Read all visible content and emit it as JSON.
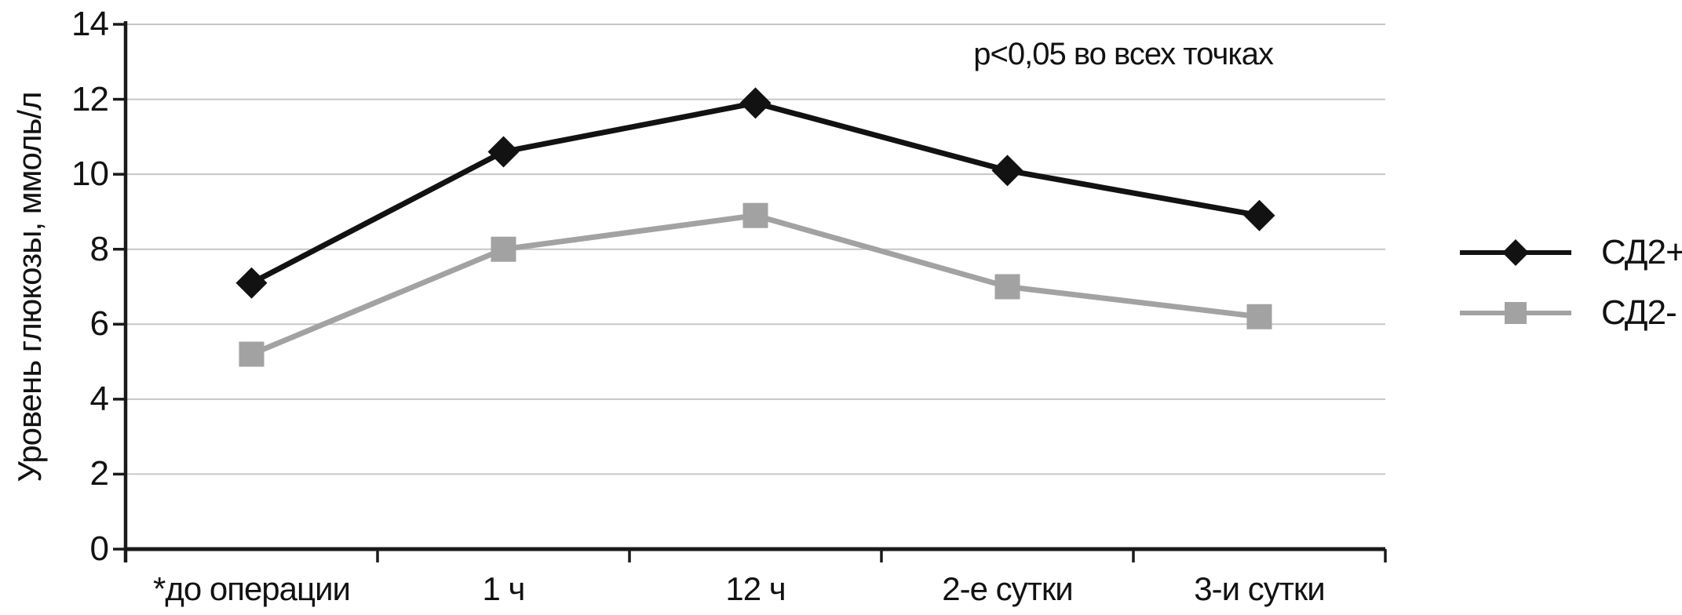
{
  "chart_data": {
    "type": "line",
    "title": "",
    "xlabel": "",
    "ylabel": "Уровень глюкозы, ммоль/л",
    "annotation": "р<0,05 во всех точках",
    "categories": [
      "*до операции",
      "1 ч",
      "12 ч",
      "2-е сутки",
      "3-и сутки"
    ],
    "series": [
      {
        "name": "СД2+",
        "marker": "diamond",
        "color": "#121212",
        "values": [
          7.1,
          10.6,
          11.9,
          10.1,
          8.9
        ]
      },
      {
        "name": "СД2-",
        "marker": "square",
        "color": "#a2a2a2",
        "values": [
          5.2,
          8.0,
          8.9,
          7.0,
          6.2
        ]
      }
    ],
    "ylim": [
      0,
      14
    ],
    "yticks": [
      0,
      2,
      4,
      6,
      8,
      10,
      12,
      14
    ],
    "grid": "horizontal",
    "legend_position": "right-outside",
    "colors": {
      "background": "#ffffff",
      "axis": "#1a1a1a",
      "gridline": "#c6c6c6",
      "text": "#121212"
    }
  }
}
